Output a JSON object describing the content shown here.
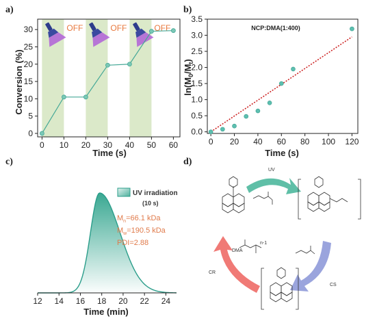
{
  "panel_labels": [
    "a)",
    "b)",
    "c)",
    "d)"
  ],
  "chart_data": [
    {
      "type": "line",
      "panel": "a)",
      "x": [
        0,
        10,
        20,
        30,
        40,
        50,
        60
      ],
      "series": [
        {
          "values": [
            0,
            10.5,
            10.5,
            19.7,
            20.0,
            29.5,
            29.7
          ]
        }
      ],
      "xlabel": "Time (s)",
      "ylabel": "Conversion (%)",
      "xlim": [
        -2,
        63
      ],
      "ylim": [
        -1,
        33
      ],
      "xticks": [
        0,
        10,
        20,
        30,
        40,
        50,
        60
      ],
      "yticks": [
        0,
        5,
        10,
        15,
        20,
        25,
        30
      ],
      "on_intervals": [
        [
          0,
          10
        ],
        [
          20,
          30
        ],
        [
          40,
          50
        ]
      ],
      "annotations": [
        "OFF",
        "OFF",
        "OFF"
      ],
      "icon": "uv-flashlight-icon",
      "colors": {
        "line": "#45a897",
        "marker": "#7cc8b6",
        "highlight": "#dbe9c9",
        "off_text": "#e8783d"
      }
    },
    {
      "type": "scatter",
      "panel": "b)",
      "title": "NCP:DMA(1:400)",
      "x": [
        0,
        10,
        20,
        30,
        40,
        50,
        60,
        70,
        120
      ],
      "series": [
        {
          "values": [
            0.0,
            0.08,
            0.18,
            0.48,
            0.65,
            0.9,
            1.5,
            1.95,
            3.2
          ]
        }
      ],
      "fit_line": {
        "x": [
          0,
          120
        ],
        "y": [
          0.0,
          2.95
        ]
      },
      "xlabel": "Time (s)",
      "ylabel": "ln(M0/Mt)",
      "ylabel_parts": [
        "ln(M",
        "0",
        "/M",
        "t",
        ")"
      ],
      "xlim": [
        -3,
        125
      ],
      "ylim": [
        -0.05,
        3.5
      ],
      "xticks": [
        0,
        20,
        40,
        60,
        80,
        100,
        120
      ],
      "yticks": [
        "0.0",
        "0.5",
        "1.0",
        "1.5",
        "2.0",
        "2.5",
        "3.0",
        "3.5"
      ],
      "colors": {
        "marker": "#5dbfb0",
        "fit": "#cc2222"
      }
    },
    {
      "type": "area",
      "panel": "c)",
      "legend": "UV irradiation",
      "legend_sub": "(10 s)",
      "peak": 17.8,
      "xlabel": "Time (min)",
      "xlim": [
        12,
        25
      ],
      "xticks": [
        12,
        14,
        16,
        18,
        20,
        22,
        24
      ],
      "stats": [
        {
          "prefix": "M",
          "sub": "n",
          "value": "=66.1 kDa"
        },
        {
          "prefix": "M",
          "sub": "w",
          "value": "=190.5 kDa"
        },
        {
          "prefix": "PDI=2.88",
          "sub": "",
          "value": ""
        }
      ],
      "colors": {
        "line": "#2a9d8a",
        "fill_top": "#3aa892",
        "stats": "#e07a4a"
      }
    }
  ],
  "scheme": {
    "labels": {
      "uv": "UV",
      "cr": "CR",
      "cs": "CS",
      "dma": "DMA",
      "n_minus_1": "n-1"
    },
    "colors": {
      "uv_arrow": "#5fbfa7",
      "cs_arrow": "#9aa4dd",
      "cr_arrow": "#f07a76"
    }
  }
}
